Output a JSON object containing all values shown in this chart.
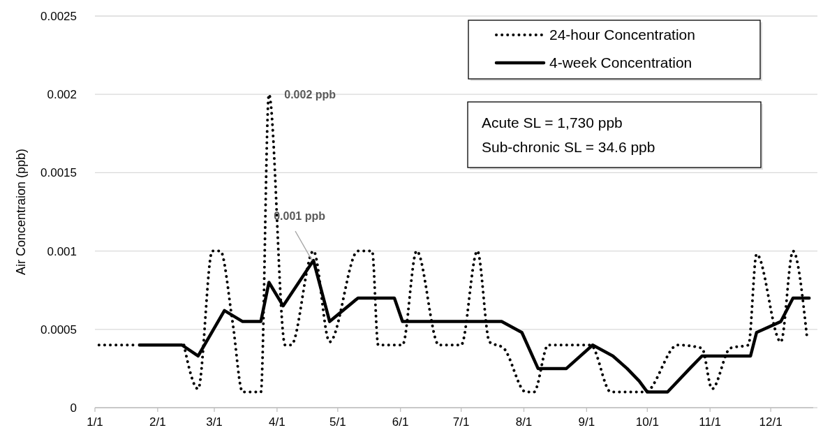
{
  "chart_data": {
    "type": "line",
    "ylabel": "Air Concentraion (ppb)",
    "xlim": [
      "--01-01",
      "--12-22"
    ],
    "ylim": [
      0,
      0.0025
    ],
    "xticks": [
      {
        "value": "--01-01",
        "label": "1/1"
      },
      {
        "value": "--02-01",
        "label": "2/1"
      },
      {
        "value": "--03-01",
        "label": "3/1"
      },
      {
        "value": "--04-01",
        "label": "4/1"
      },
      {
        "value": "--05-01",
        "label": "5/1"
      },
      {
        "value": "--06-01",
        "label": "6/1"
      },
      {
        "value": "--07-01",
        "label": "7/1"
      },
      {
        "value": "--08-01",
        "label": "8/1"
      },
      {
        "value": "--09-01",
        "label": "9/1"
      },
      {
        "value": "--10-01",
        "label": "10/1"
      },
      {
        "value": "--11-01",
        "label": "11/1"
      },
      {
        "value": "--12-01",
        "label": "12/1"
      }
    ],
    "yticks": [
      0,
      0.0005,
      0.001,
      0.0015,
      0.002,
      0.0025
    ],
    "grid": "y",
    "legend": "top right",
    "marker": "none",
    "series": [
      {
        "name": "24-hour Concentration",
        "color": "#000000",
        "line_style": "dotted",
        "x": [
          "--01-03",
          "--01-21",
          "--02-01",
          "--02-14",
          "--02-21",
          "--02-28",
          "--03-04",
          "--03-10",
          "--03-15",
          "--03-24",
          "--03-28",
          "--04-05",
          "--04-08",
          "--04-19",
          "--04-27",
          "--05-11",
          "--05-18",
          "--05-21",
          "--06-02",
          "--06-09",
          "--06-20",
          "--07-01",
          "--07-09",
          "--07-15",
          "--07-22",
          "--08-02",
          "--08-06",
          "--08-13",
          "--09-03",
          "--09-13",
          "--09-27",
          "--09-30",
          "--10-16",
          "--10-28",
          "--11-02",
          "--11-11",
          "--11-20",
          "--11-24",
          "--12-06",
          "--12-12",
          "--12-19"
        ],
        "values": [
          0.0004,
          0.0004,
          null,
          0.0004,
          0.00012,
          0.001,
          0.001,
          0.00055,
          0.0001,
          0.0001,
          0.002,
          0.0004,
          0.0004,
          0.001,
          0.00042,
          0.001,
          0.001,
          0.0004,
          0.0004,
          0.001,
          0.0004,
          0.0004,
          0.001,
          0.00042,
          0.00038,
          0.0001,
          0.0001,
          0.0004,
          0.0004,
          0.0001,
          0.0001,
          0.0001,
          0.0004,
          0.00038,
          0.00012,
          0.00038,
          0.0004,
          0.00098,
          0.00042,
          0.001,
          0.00044
        ]
      },
      {
        "name": "4-week Concentration",
        "color": "#000000",
        "line_style": "solid",
        "x": [
          "--01-23",
          "--02-13",
          "--02-21",
          "--03-06",
          "--03-15",
          "--03-24",
          "--03-28",
          "--04-04",
          "--04-19",
          "--04-27",
          "--05-11",
          "--05-29",
          "--06-02",
          "--07-21",
          "--07-31",
          "--08-08",
          "--08-22",
          "--09-04",
          "--09-14",
          "--09-21",
          "--09-27",
          "--10-01",
          "--10-11",
          "--10-22",
          "--10-28",
          "--11-21",
          "--11-24",
          "--12-06",
          "--12-12",
          "--12-20"
        ],
        "values": [
          0.0004,
          0.0004,
          0.00033,
          0.00062,
          0.00055,
          0.00055,
          0.0008,
          0.00065,
          0.00094,
          0.00055,
          0.0007,
          0.0007,
          0.00055,
          0.00055,
          0.00048,
          0.00025,
          0.00025,
          0.0004,
          0.00033,
          0.00025,
          0.00017,
          0.0001,
          0.0001,
          0.00025,
          0.00033,
          0.00033,
          0.00048,
          0.00055,
          0.0007,
          0.0007
        ]
      }
    ],
    "annotations": [
      {
        "text": "0.002 ppb",
        "x": "--03-28",
        "y": 0.002
      },
      {
        "text": "0.001 ppb",
        "x": "--04-19",
        "y": 0.00094
      },
      "Acute SL = 1,730 ppb",
      "Sub-chronic SL = 34.6 ppb"
    ]
  }
}
